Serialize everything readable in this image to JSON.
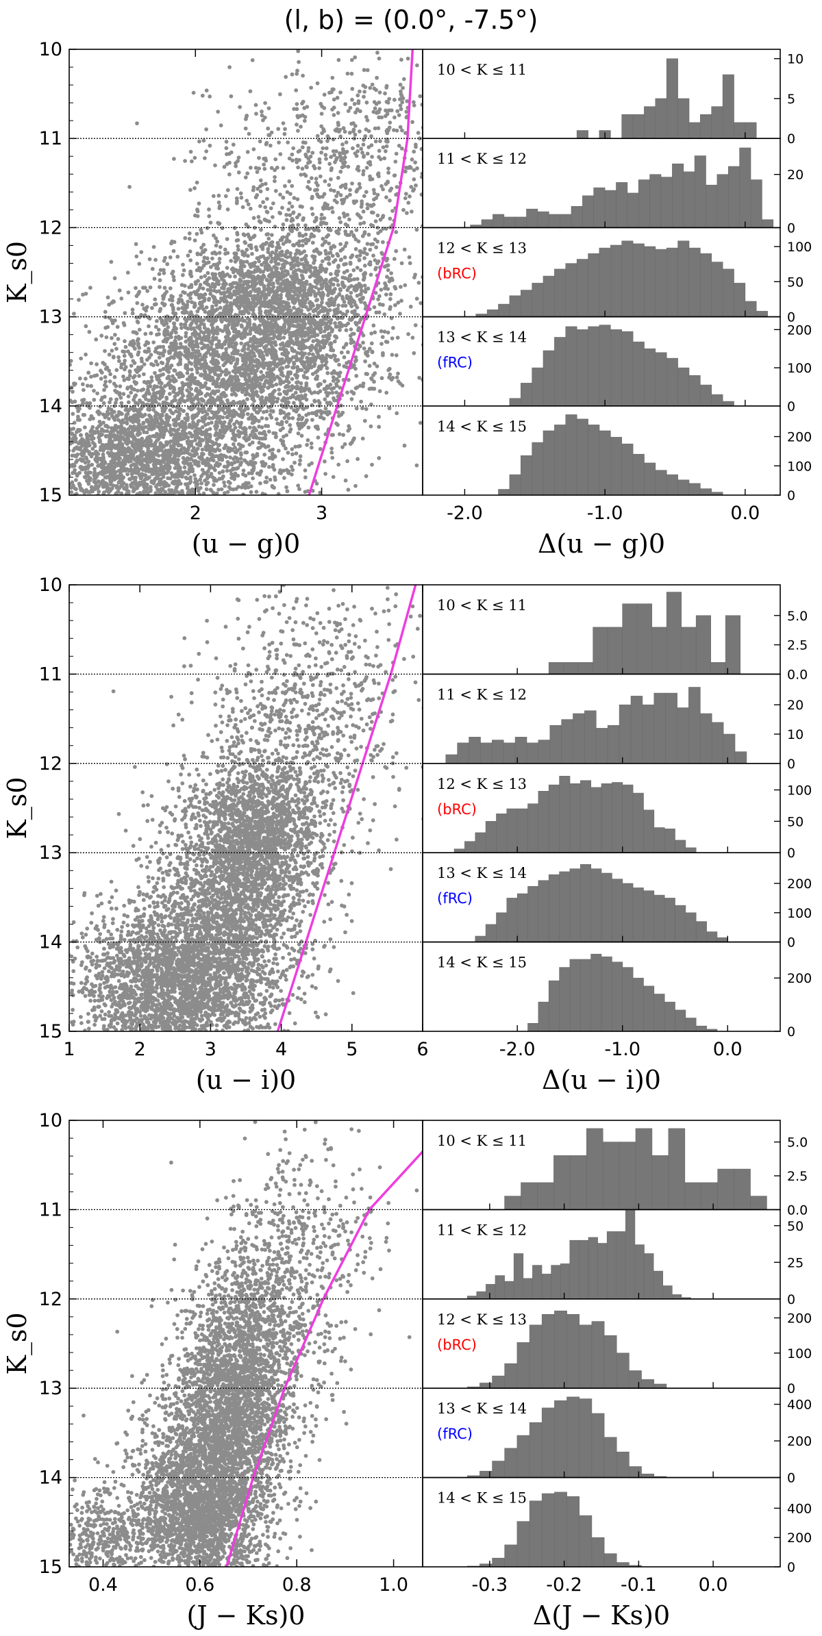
{
  "title": "(l, b) = (0.0°, -7.5°)",
  "colors": {
    "points": "#8c8c8c",
    "bars": "#777777",
    "fit_line": "#ee3ddf",
    "bRC": "#ff0000",
    "fRC": "#0000ff"
  },
  "chart_data": [
    {
      "type": "scatter",
      "ylabel": "K_s0",
      "xlabel": "(u − g)0",
      "xlim": [
        1.0,
        3.8
      ],
      "ylim": [
        15,
        10
      ],
      "xticks": [
        "2",
        "3"
      ],
      "xtick_values": [
        2,
        3
      ],
      "yticks": [
        "10",
        "11",
        "12",
        "13",
        "14",
        "15"
      ],
      "ytick_values": [
        10,
        11,
        12,
        13,
        14,
        15
      ],
      "grid_hlines": [
        11,
        12,
        13,
        14
      ],
      "fit_line": {
        "color": "#ee3ddf",
        "x": [
          2.9,
          3.57,
          3.68,
          3.72
        ],
        "y": [
          15,
          12.0,
          11.0,
          10.0
        ]
      },
      "point_clumps": [
        {
          "cx": 1.55,
          "cy": 14.6,
          "sx": 0.45,
          "sy": 0.45,
          "n": 2300
        },
        {
          "cx": 2.35,
          "cy": 13.85,
          "sx": 0.5,
          "sy": 0.7,
          "n": 1500
        },
        {
          "cx": 2.7,
          "cy": 12.7,
          "sx": 0.4,
          "sy": 0.32,
          "n": 1200
        },
        {
          "cx": 2.4,
          "cy": 13.4,
          "sx": 0.55,
          "sy": 0.45,
          "n": 1500
        },
        {
          "cx": 3.0,
          "cy": 11.6,
          "sx": 0.5,
          "sy": 0.65,
          "n": 650
        },
        {
          "cx": 3.4,
          "cy": 10.8,
          "sx": 0.28,
          "sy": 0.45,
          "n": 200
        }
      ]
    },
    {
      "type": "bar",
      "xlabel": "Δ(u − g)0",
      "xlim": [
        -2.3,
        0.25
      ],
      "xticks": [
        "-2.0",
        "-1.0",
        "0.0"
      ],
      "xtick_values": [
        -2.0,
        -1.0,
        0.0
      ],
      "subpanels": [
        {
          "label": "10 < K ≤ 11",
          "annotation": "",
          "ymax": 11,
          "yticks": [
            "0",
            "5",
            "10"
          ],
          "ytick_values": [
            0,
            5,
            10
          ],
          "bin_start": -1.2,
          "bin_width": 0.08,
          "counts": [
            1,
            0,
            1,
            0,
            3,
            3,
            4,
            5,
            10,
            5,
            2,
            3,
            4,
            8,
            2,
            2
          ]
        },
        {
          "label": "11 < K ≤ 12",
          "annotation": "",
          "ymax": 33,
          "yticks": [
            "0",
            "20"
          ],
          "ytick_values": [
            0,
            20
          ],
          "bin_start": -1.96,
          "bin_width": 0.08,
          "counts": [
            1,
            3,
            5,
            4,
            4,
            7,
            6,
            5,
            5,
            8,
            12,
            15,
            14,
            17,
            13,
            18,
            20,
            19,
            24,
            21,
            27,
            16,
            20,
            23,
            30,
            18,
            3
          ]
        },
        {
          "label": "12 < K ≤ 13",
          "annotation": "(bRC)",
          "ymax": 125,
          "yticks": [
            "0",
            "50",
            "100"
          ],
          "ytick_values": [
            0,
            50,
            100
          ],
          "bin_start": -1.92,
          "bin_width": 0.08,
          "counts": [
            4,
            10,
            18,
            30,
            38,
            48,
            58,
            68,
            76,
            82,
            90,
            98,
            102,
            108,
            104,
            100,
            96,
            98,
            108,
            98,
            90,
            78,
            68,
            48,
            22,
            8
          ]
        },
        {
          "label": "13 < K ≤ 14",
          "annotation": "(fRC)",
          "ymax": 230,
          "yticks": [
            "0",
            "100",
            "200"
          ],
          "ytick_values": [
            0,
            100,
            200
          ],
          "bin_start": -1.68,
          "bin_width": 0.08,
          "counts": [
            20,
            60,
            100,
            145,
            180,
            208,
            200,
            208,
            212,
            200,
            195,
            168,
            150,
            140,
            125,
            100,
            80,
            55,
            30,
            12
          ]
        },
        {
          "label": "14 < K ≤ 15",
          "annotation": "",
          "ymax": 300,
          "yticks": [
            "0",
            "100",
            "200"
          ],
          "ytick_values": [
            0,
            100,
            200
          ],
          "bin_start": -1.76,
          "bin_width": 0.08,
          "counts": [
            20,
            70,
            135,
            180,
            220,
            240,
            275,
            260,
            240,
            220,
            198,
            175,
            140,
            110,
            85,
            70,
            52,
            40,
            22,
            10
          ]
        }
      ]
    },
    {
      "type": "scatter",
      "ylabel": "K_s0",
      "xlabel": "(u − i)0",
      "xlim": [
        1,
        6
      ],
      "ylim": [
        15,
        10
      ],
      "xticks": [
        "1",
        "2",
        "3",
        "4",
        "5",
        "6"
      ],
      "xtick_values": [
        1,
        2,
        3,
        4,
        5,
        6
      ],
      "yticks": [
        "10",
        "11",
        "12",
        "13",
        "14",
        "15"
      ],
      "ytick_values": [
        10,
        11,
        12,
        13,
        14,
        15
      ],
      "grid_hlines": [
        11,
        12,
        13,
        14
      ],
      "fit_line": {
        "color": "#ee3ddf",
        "x": [
          3.95,
          4.55,
          5.15,
          5.55,
          5.9
        ],
        "y": [
          15,
          13.5,
          12,
          11,
          10
        ]
      },
      "point_clumps": [
        {
          "cx": 2.4,
          "cy": 14.55,
          "sx": 0.65,
          "sy": 0.45,
          "n": 2400
        },
        {
          "cx": 3.2,
          "cy": 13.7,
          "sx": 0.55,
          "sy": 0.65,
          "n": 2000
        },
        {
          "cx": 3.7,
          "cy": 12.8,
          "sx": 0.45,
          "sy": 0.4,
          "n": 1400
        },
        {
          "cx": 4.1,
          "cy": 11.9,
          "sx": 0.7,
          "sy": 0.7,
          "n": 700
        },
        {
          "cx": 4.8,
          "cy": 10.9,
          "sx": 0.6,
          "sy": 0.55,
          "n": 220
        }
      ]
    },
    {
      "type": "bar",
      "xlabel": "Δ(u − i)0",
      "xlim": [
        -2.9,
        0.5
      ],
      "xticks": [
        "-2.0",
        "-1.0",
        "0.0"
      ],
      "xtick_values": [
        -2.0,
        -1.0,
        0.0
      ],
      "subpanels": [
        {
          "label": "10 < K ≤ 11",
          "annotation": "",
          "ymax": 7.5,
          "yticks": [
            "0.0",
            "2.5",
            "5.0"
          ],
          "ytick_values": [
            0,
            2.5,
            5.0
          ],
          "bin_start": -1.7,
          "bin_width": 0.14,
          "counts": [
            1,
            1,
            1,
            4,
            4,
            6,
            6,
            4,
            7,
            4,
            5,
            1,
            5
          ]
        },
        {
          "label": "11 < K ≤ 12",
          "annotation": "",
          "ymax": 30,
          "yticks": [
            "0",
            "10",
            "20"
          ],
          "ytick_values": [
            0,
            10,
            20
          ],
          "bin_start": -2.68,
          "bin_width": 0.11,
          "counts": [
            3,
            7,
            9,
            7,
            8,
            7,
            9,
            7,
            8,
            13,
            15,
            17,
            18,
            12,
            13,
            20,
            23,
            20,
            24,
            24,
            19,
            26,
            17,
            14,
            10,
            4
          ]
        },
        {
          "label": "12 < K ≤ 13",
          "annotation": "(bRC)",
          "ymax": 140,
          "yticks": [
            "0",
            "50",
            "100"
          ],
          "ytick_values": [
            0,
            50,
            100
          ],
          "bin_start": -2.6,
          "bin_width": 0.1,
          "counts": [
            6,
            18,
            32,
            50,
            62,
            70,
            70,
            78,
            98,
            108,
            122,
            110,
            115,
            104,
            110,
            112,
            108,
            95,
            68,
            40,
            38,
            20,
            8
          ]
        },
        {
          "label": "13 < K ≤ 14",
          "annotation": "(fRC)",
          "ymax": 300,
          "yticks": [
            "0",
            "100",
            "200"
          ],
          "ytick_values": [
            0,
            100,
            200
          ],
          "bin_start": -2.4,
          "bin_width": 0.1,
          "counts": [
            20,
            60,
            100,
            150,
            165,
            190,
            210,
            230,
            240,
            250,
            265,
            250,
            235,
            215,
            200,
            185,
            175,
            160,
            150,
            125,
            100,
            70,
            35,
            15
          ]
        },
        {
          "label": "14 < K ≤ 15",
          "annotation": "",
          "ymax": 330,
          "yticks": [
            "0",
            "200"
          ],
          "ytick_values": [
            0,
            200
          ],
          "bin_start": -1.9,
          "bin_width": 0.1,
          "counts": [
            30,
            110,
            190,
            240,
            270,
            270,
            290,
            280,
            260,
            240,
            200,
            170,
            140,
            110,
            80,
            50,
            20,
            8
          ]
        }
      ]
    },
    {
      "type": "scatter",
      "ylabel": "K_s0",
      "xlabel": "(J − Ks)0",
      "xlim": [
        0.33,
        1.06
      ],
      "ylim": [
        15,
        10
      ],
      "xticks": [
        "0.4",
        "0.6",
        "0.8",
        "1.0"
      ],
      "xtick_values": [
        0.4,
        0.6,
        0.8,
        1.0
      ],
      "yticks": [
        "10",
        "11",
        "12",
        "13",
        "14",
        "15"
      ],
      "ytick_values": [
        10,
        11,
        12,
        13,
        14,
        15
      ],
      "grid_hlines": [
        11,
        12,
        13,
        14
      ],
      "fit_line": {
        "color": "#ee3ddf",
        "x": [
          0.655,
          0.71,
          0.775,
          0.855,
          0.95,
          1.06
        ],
        "y": [
          15,
          14,
          13,
          12,
          11,
          10.35
        ]
      },
      "point_clumps": [
        {
          "cx": 0.6,
          "cy": 14.35,
          "sx": 0.07,
          "sy": 0.5,
          "n": 2600
        },
        {
          "cx": 0.66,
          "cy": 13.2,
          "sx": 0.06,
          "sy": 0.55,
          "n": 1900
        },
        {
          "cx": 0.72,
          "cy": 12.3,
          "sx": 0.07,
          "sy": 0.55,
          "n": 900
        },
        {
          "cx": 0.82,
          "cy": 11.3,
          "sx": 0.08,
          "sy": 0.6,
          "n": 320
        },
        {
          "cx": 0.4,
          "cy": 14.7,
          "sx": 0.04,
          "sy": 0.25,
          "n": 350
        }
      ]
    },
    {
      "type": "bar",
      "xlabel": "Δ(J − Ks)0",
      "xlim": [
        -0.39,
        0.09
      ],
      "xticks": [
        "-0.3",
        "-0.2",
        "-0.1",
        "0.0"
      ],
      "xtick_values": [
        -0.3,
        -0.2,
        -0.1,
        0.0
      ],
      "subpanels": [
        {
          "label": "10 < K ≤ 11",
          "annotation": "",
          "ymax": 6.5,
          "yticks": [
            "0.0",
            "2.5",
            "5.0"
          ],
          "ytick_values": [
            0,
            2.5,
            5.0
          ],
          "bin_start": -0.28,
          "bin_width": 0.022,
          "counts": [
            1,
            2,
            2,
            4,
            4,
            6,
            5,
            5,
            6,
            4,
            6,
            2,
            2,
            3,
            3,
            1
          ]
        },
        {
          "label": "11 < K ≤ 12",
          "annotation": "",
          "ymax": 60,
          "yticks": [
            "0",
            "25",
            "50"
          ],
          "ytick_values": [
            0,
            25,
            50
          ],
          "bin_start": -0.33,
          "bin_width": 0.0125,
          "counts": [
            2,
            5,
            10,
            16,
            12,
            31,
            14,
            23,
            17,
            23,
            24,
            40,
            40,
            42,
            38,
            46,
            46,
            62,
            37,
            31,
            19,
            9,
            3,
            1
          ]
        },
        {
          "label": "12 < K ≤ 13",
          "annotation": "(bRC)",
          "ymax": 250,
          "yticks": [
            "0",
            "100",
            "200"
          ],
          "ytick_values": [
            0,
            100,
            200
          ],
          "bin_start": -0.33,
          "bin_width": 0.0167,
          "counts": [
            4,
            15,
            35,
            70,
            130,
            180,
            210,
            220,
            210,
            180,
            190,
            150,
            100,
            50,
            25,
            12
          ]
        },
        {
          "label": "13 < K ≤ 14",
          "annotation": "(fRC)",
          "ymax": 480,
          "yticks": [
            "0",
            "200",
            "400"
          ],
          "ytick_values": [
            0,
            200,
            400
          ],
          "bin_start": -0.33,
          "bin_width": 0.0167,
          "counts": [
            10,
            35,
            90,
            160,
            230,
            300,
            380,
            420,
            440,
            430,
            350,
            220,
            140,
            60,
            20,
            6
          ]
        },
        {
          "label": "14 < K ≤ 15",
          "annotation": "",
          "ymax": 600,
          "yticks": [
            "0",
            "200",
            "400"
          ],
          "ytick_values": [
            0,
            200,
            400
          ],
          "bin_start": -0.33,
          "bin_width": 0.0167,
          "counts": [
            5,
            20,
            60,
            150,
            310,
            450,
            500,
            510,
            480,
            350,
            200,
            90,
            30,
            10
          ]
        }
      ]
    }
  ]
}
